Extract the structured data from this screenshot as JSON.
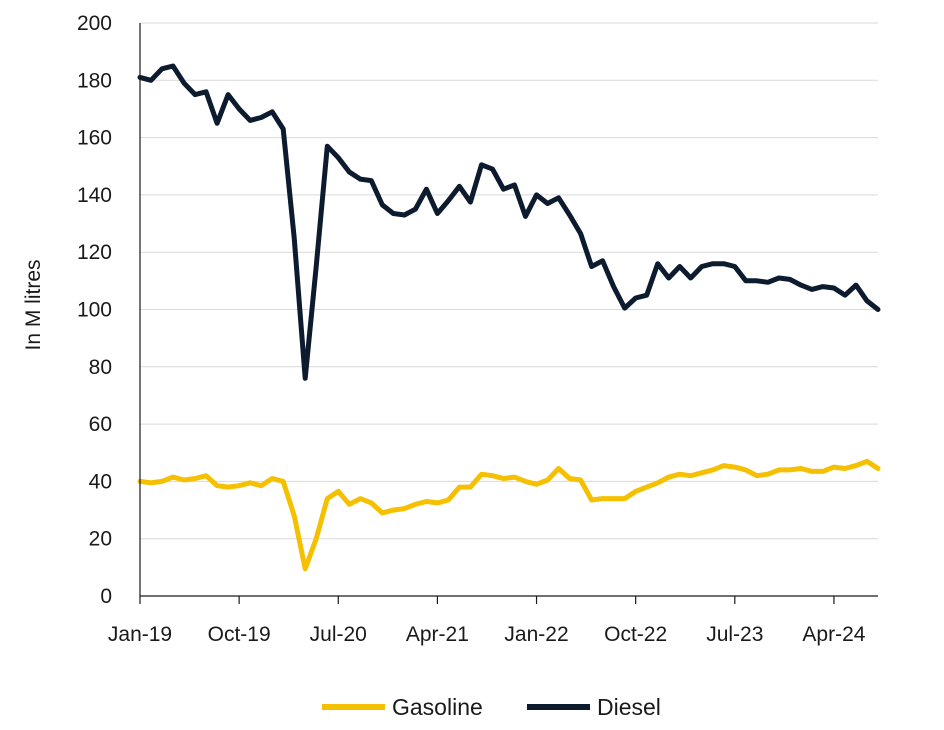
{
  "chart_data": {
    "type": "line",
    "title": "",
    "xlabel": "",
    "ylabel": "In M litres",
    "ylim": [
      0,
      200
    ],
    "yticks": [
      0,
      20,
      40,
      60,
      80,
      100,
      120,
      140,
      160,
      180,
      200
    ],
    "xticks": [
      "Jan-19",
      "Oct-19",
      "Jul-20",
      "Apr-21",
      "Jan-22",
      "Oct-22",
      "Jul-23",
      "Apr-24"
    ],
    "x": [
      "Jan-19",
      "Feb-19",
      "Mar-19",
      "Apr-19",
      "May-19",
      "Jun-19",
      "Jul-19",
      "Aug-19",
      "Sep-19",
      "Oct-19",
      "Nov-19",
      "Dec-19",
      "Jan-20",
      "Feb-20",
      "Mar-20",
      "Apr-20",
      "May-20",
      "Jun-20",
      "Jul-20",
      "Aug-20",
      "Sep-20",
      "Oct-20",
      "Nov-20",
      "Dec-20",
      "Jan-21",
      "Feb-21",
      "Mar-21",
      "Apr-21",
      "May-21",
      "Jun-21",
      "Jul-21",
      "Aug-21",
      "Sep-21",
      "Oct-21",
      "Nov-21",
      "Dec-21",
      "Jan-22",
      "Feb-22",
      "Mar-22",
      "Apr-22",
      "May-22",
      "Jun-22",
      "Jul-22",
      "Aug-22",
      "Sep-22",
      "Oct-22",
      "Nov-22",
      "Dec-22",
      "Jan-23",
      "Feb-23",
      "Mar-23",
      "Apr-23",
      "May-23",
      "Jun-23",
      "Jul-23",
      "Aug-23",
      "Sep-23",
      "Oct-23",
      "Nov-23",
      "Dec-23",
      "Jan-24",
      "Feb-24",
      "Mar-24",
      "Apr-24",
      "May-24",
      "Jun-24",
      "Jul-24",
      "Aug-24"
    ],
    "grid": true,
    "legend_position": "bottom",
    "series": [
      {
        "name": "Gasoline",
        "color": "#f5c000",
        "values": [
          40,
          39.5,
          40,
          41.5,
          40.5,
          41,
          42,
          38.5,
          38,
          38.5,
          39.5,
          38.5,
          41,
          40,
          28,
          9.5,
          20,
          34,
          36.5,
          32,
          34,
          32.5,
          29,
          30,
          30.5,
          32,
          33,
          32.5,
          33.5,
          38,
          38,
          42.5,
          42,
          41,
          41.5,
          40,
          39,
          40.5,
          44.5,
          41,
          40.5,
          33.5,
          34,
          34,
          34,
          36.5,
          38,
          39.5,
          41.5,
          42.5,
          42,
          43,
          44,
          45.5,
          45,
          44,
          42,
          42.5,
          44,
          44,
          44.5,
          43.5,
          43.5,
          45,
          44.5,
          45.5,
          47,
          44.5
        ]
      },
      {
        "name": "Diesel",
        "color": "#0d1b2e",
        "values": [
          181,
          180,
          184,
          185,
          179,
          175,
          176,
          165,
          175,
          170,
          166,
          167,
          169,
          163,
          125,
          76,
          115,
          157,
          153,
          148,
          145.5,
          145,
          136.5,
          133.5,
          133,
          135,
          142,
          133.5,
          138,
          143,
          137.5,
          150.5,
          149,
          142,
          143.5,
          132.5,
          140,
          137,
          139,
          133,
          126.5,
          115,
          117,
          108,
          100.5,
          104,
          105,
          116,
          111,
          115,
          111,
          115,
          116,
          116,
          115,
          110,
          110,
          109.5,
          111,
          110.5,
          108.5,
          107,
          108,
          107.5,
          105,
          108.5,
          103,
          100
        ]
      }
    ]
  }
}
